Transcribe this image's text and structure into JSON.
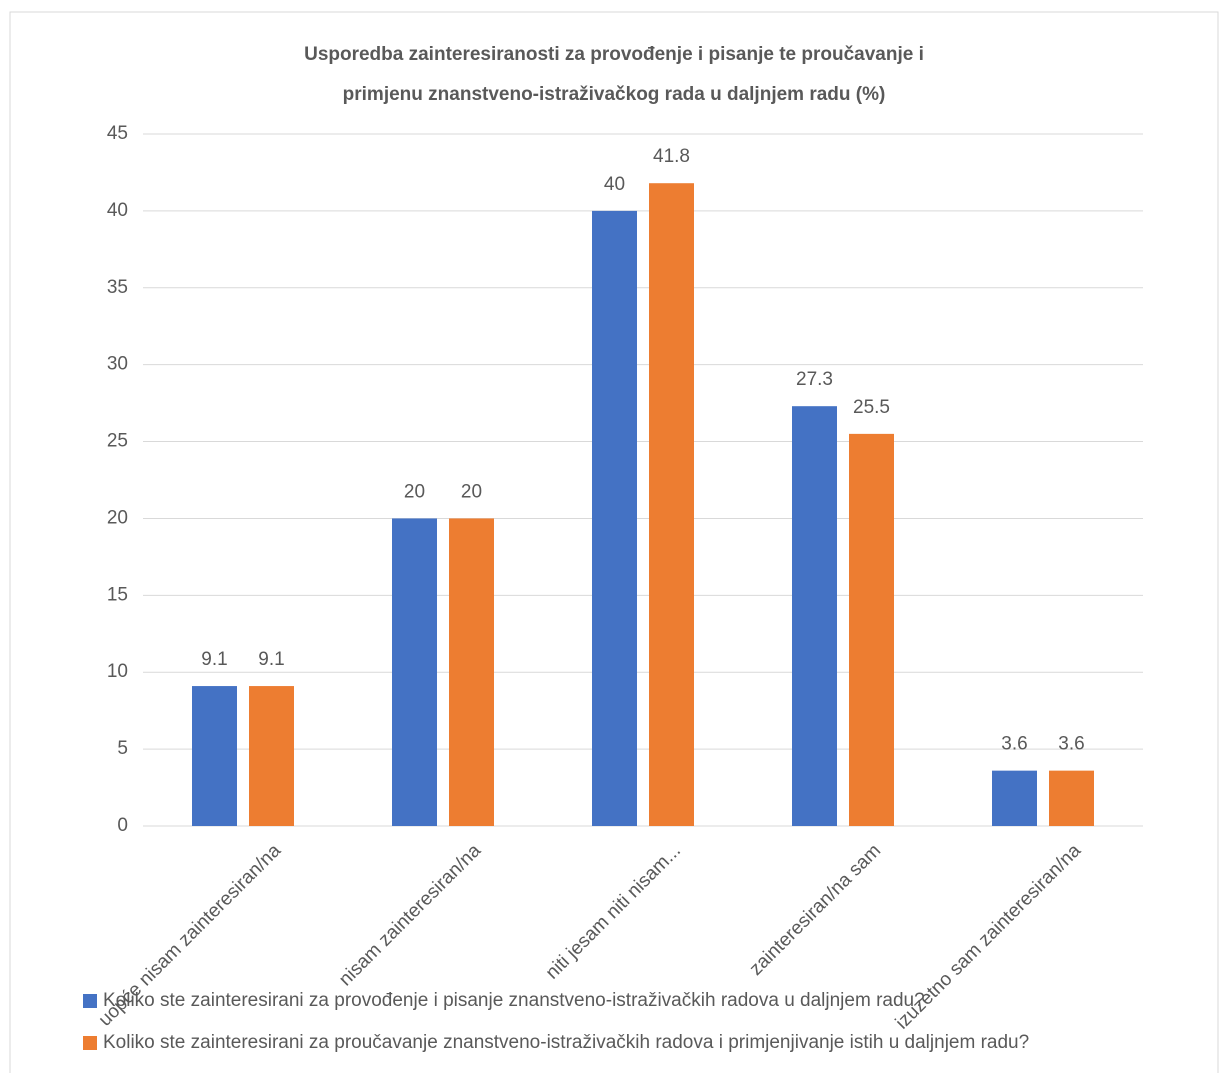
{
  "chart_data": {
    "type": "bar",
    "title": [
      "Usporedba zainteresiranosti za provođenje i pisanje te proučavanje i",
      "primjenu znanstveno-istraživačkog rada u daljnjem radu (%)"
    ],
    "categories": [
      "uopće nisam zainteresiran/na",
      "nisam zainteresiran/na",
      "niti jesam niti nisam...",
      "zainteresiran/na sam",
      "izuzetno sam zainteresiran/na"
    ],
    "series": [
      {
        "name": "Koliko ste zainteresirani za provođenje i pisanje znanstveno-istraživačkih radova u daljnjem radu?",
        "color": "#4472c4",
        "values": [
          9.1,
          20,
          40,
          27.3,
          3.6
        ]
      },
      {
        "name": "Koliko ste zainteresirani za proučavanje znanstveno-istraživačkih radova i primjenjivanje istih u daljnjem radu?",
        "color": "#ed7d31",
        "values": [
          9.1,
          20,
          41.8,
          25.5,
          3.6
        ]
      }
    ],
    "ylim": [
      0,
      45
    ],
    "yticks": [
      0,
      5,
      10,
      15,
      20,
      25,
      30,
      35,
      40,
      45
    ],
    "grid": true,
    "legend": "bottom"
  }
}
